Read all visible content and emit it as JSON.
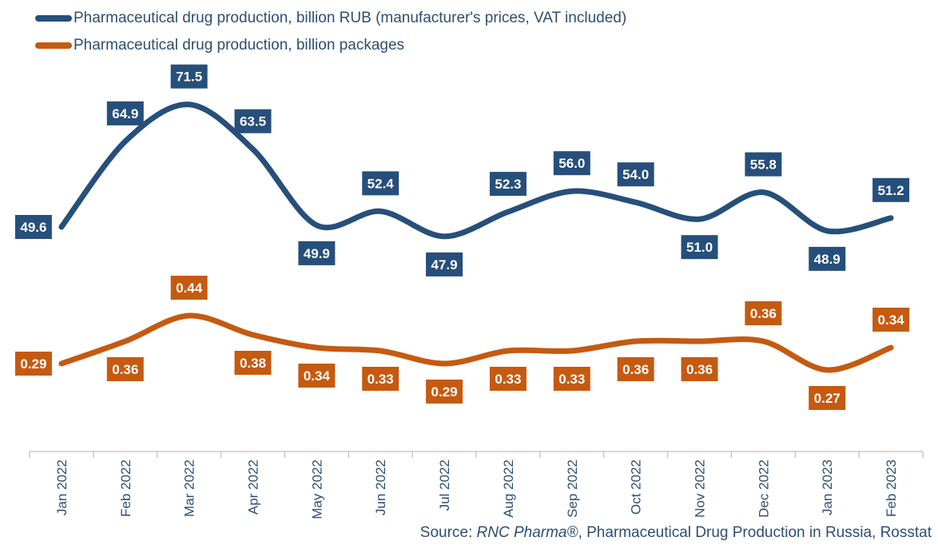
{
  "chart_data": {
    "type": "line",
    "categories": [
      "Jan 2022",
      "Feb 2022",
      "Mar 2022",
      "Apr 2022",
      "May 2022",
      "Jun 2022",
      "Jul 2022",
      "Aug 2022",
      "Sep 2022",
      "Oct 2022",
      "Nov 2022",
      "Dec 2022",
      "Jan 2023",
      "Feb 2023"
    ],
    "series": [
      {
        "name": "Pharmaceutical drug production, billion RUB (manufacturer's prices, VAT included)",
        "color": "#264f7b",
        "values": [
          49.6,
          64.9,
          71.5,
          63.5,
          49.9,
          52.4,
          47.9,
          52.3,
          56.0,
          54.0,
          51.0,
          55.8,
          48.9,
          51.2
        ],
        "labels": [
          "49.6",
          "64.9",
          "71.5",
          "63.5",
          "49.9",
          "52.4",
          "47.9",
          "52.3",
          "56.0",
          "54.0",
          "51.0",
          "55.8",
          "48.9",
          "51.2"
        ]
      },
      {
        "name": "Pharmaceutical drug production, billion packages",
        "color": "#c55a11",
        "values": [
          0.29,
          0.36,
          0.44,
          0.38,
          0.34,
          0.33,
          0.29,
          0.33,
          0.33,
          0.36,
          0.36,
          0.36,
          0.27,
          0.34
        ],
        "labels": [
          "0.29",
          "0.36",
          "0.44",
          "0.38",
          "0.34",
          "0.33",
          "0.29",
          "0.33",
          "0.33",
          "0.36",
          "0.36",
          "0.36",
          "0.27",
          "0.34"
        ]
      }
    ],
    "legend": "top-left",
    "grid": false
  },
  "source": {
    "prefix": "Source: ",
    "brand": "RNC Pharma®",
    "suffix": ", Pharmaceutical Drug Production in Russia, Rosstat"
  }
}
